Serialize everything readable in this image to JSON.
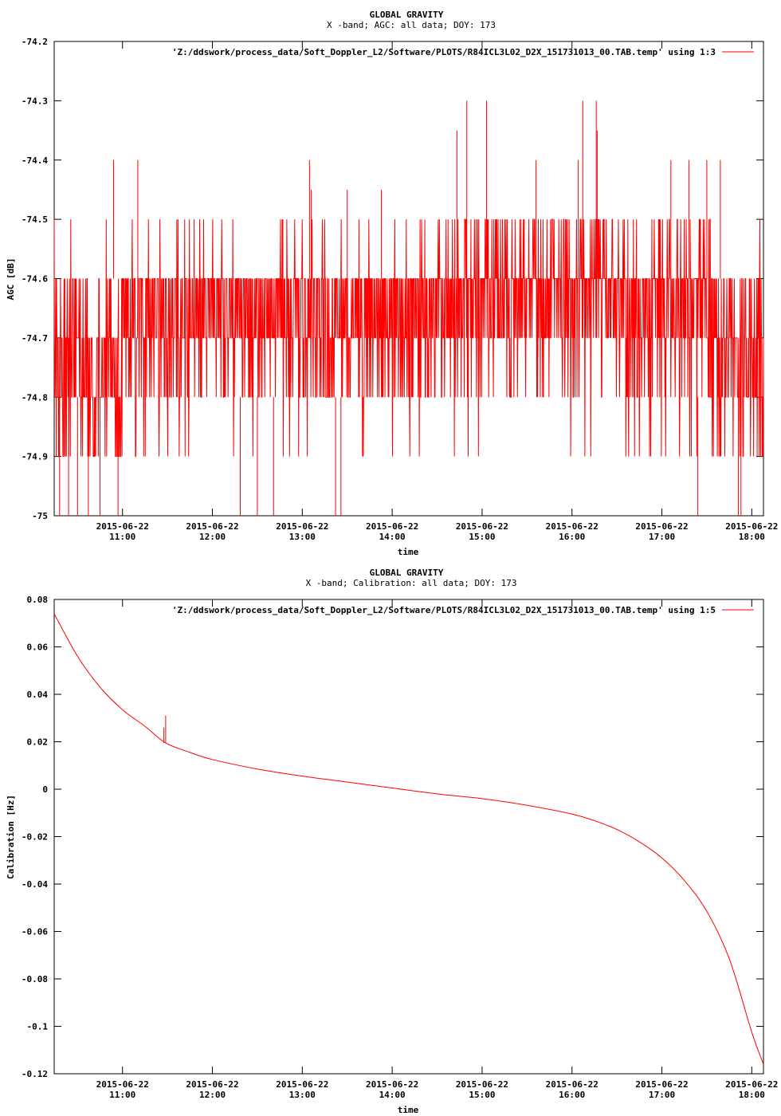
{
  "chart_data": [
    {
      "type": "line",
      "title": "GLOBAL GRAVITY",
      "subtitle": "X -band; AGC: all data; DOY: 173",
      "xlabel": "time",
      "ylabel": "AGC [dB]",
      "legend": "'Z:/ddswork/process_data/Soft_Doppler_L2/Software/PLOTS/R84ICL3L02_D2X_151731013_00.TAB.temp' using 1:3",
      "legend_position": "top-right",
      "color": "#ff0000",
      "xlim": [
        10.24,
        18.13
      ],
      "ylim": [
        -75,
        -74.2
      ],
      "yticks": [
        -75,
        -74.9,
        -74.8,
        -74.7,
        -74.6,
        -74.5,
        -74.4,
        -74.3,
        -74.2
      ],
      "ytick_labels": [
        "-75",
        "-74.9",
        "-74.8",
        "-74.7",
        "-74.6",
        "-74.5",
        "-74.4",
        "-74.3",
        "-74.2"
      ],
      "xticks": [
        11,
        12,
        13,
        14,
        15,
        16,
        17,
        18
      ],
      "xtick_dates": [
        "2015-06-22",
        "2015-06-22",
        "2015-06-22",
        "2015-06-22",
        "2015-06-22",
        "2015-06-22",
        "2015-06-22",
        "2015-06-22"
      ],
      "xtick_times": [
        "11:00",
        "12:00",
        "13:00",
        "14:00",
        "15:00",
        "16:00",
        "17:00",
        "18:00"
      ],
      "noise_levels": [
        -74.5,
        -74.6,
        -74.7,
        -74.8,
        -74.9
      ],
      "spikes": [
        {
          "x": 10.9,
          "y": -74.4
        },
        {
          "x": 11.17,
          "y": -74.4
        },
        {
          "x": 13.08,
          "y": -74.4
        },
        {
          "x": 13.1,
          "y": -74.45
        },
        {
          "x": 13.5,
          "y": -74.45
        },
        {
          "x": 13.88,
          "y": -74.45
        },
        {
          "x": 14.72,
          "y": -74.35
        },
        {
          "x": 14.83,
          "y": -74.3
        },
        {
          "x": 15.05,
          "y": -74.3
        },
        {
          "x": 15.6,
          "y": -74.4
        },
        {
          "x": 16.07,
          "y": -74.4
        },
        {
          "x": 16.12,
          "y": -74.3
        },
        {
          "x": 16.27,
          "y": -74.3
        },
        {
          "x": 16.28,
          "y": -74.35
        },
        {
          "x": 17.1,
          "y": -74.4
        },
        {
          "x": 17.3,
          "y": -74.4
        },
        {
          "x": 17.5,
          "y": -74.4
        },
        {
          "x": 17.65,
          "y": -74.4
        },
        {
          "x": 10.3,
          "y": -75.0
        },
        {
          "x": 10.4,
          "y": -75.0
        },
        {
          "x": 10.5,
          "y": -75.0
        },
        {
          "x": 10.62,
          "y": -75.0
        },
        {
          "x": 10.75,
          "y": -75.0
        },
        {
          "x": 10.95,
          "y": -75.0
        },
        {
          "x": 12.31,
          "y": -75.0
        },
        {
          "x": 12.5,
          "y": -75.0
        },
        {
          "x": 12.68,
          "y": -75.0
        },
        {
          "x": 13.37,
          "y": -75.0
        },
        {
          "x": 13.43,
          "y": -75.0
        },
        {
          "x": 17.4,
          "y": -75.0
        },
        {
          "x": 17.85,
          "y": -75.0
        },
        {
          "x": 17.88,
          "y": -75.0
        }
      ]
    },
    {
      "type": "line",
      "title": "GLOBAL GRAVITY",
      "subtitle": "X -band; Calibration: all data; DOY: 173",
      "xlabel": "time",
      "ylabel": "Calibration [Hz]",
      "legend": "'Z:/ddswork/process_data/Soft_Doppler_L2/Software/PLOTS/R84ICL3L02_D2X_151731013_00.TAB.temp' using 1:5",
      "legend_position": "top-right",
      "color": "#ff0000",
      "xlim": [
        10.24,
        18.13
      ],
      "ylim": [
        -0.12,
        0.08
      ],
      "yticks": [
        -0.12,
        -0.1,
        -0.08,
        -0.06,
        -0.04,
        -0.02,
        0,
        0.02,
        0.04,
        0.06,
        0.08
      ],
      "ytick_labels": [
        "-0.12",
        "-0.1",
        "-0.08",
        "-0.06",
        "-0.04",
        "-0.02",
        "0",
        "0.02",
        "0.04",
        "0.06",
        "0.08"
      ],
      "xticks": [
        11,
        12,
        13,
        14,
        15,
        16,
        17,
        18
      ],
      "xtick_dates": [
        "2015-06-22",
        "2015-06-22",
        "2015-06-22",
        "2015-06-22",
        "2015-06-22",
        "2015-06-22",
        "2015-06-22",
        "2015-06-22"
      ],
      "xtick_times": [
        "11:00",
        "12:00",
        "13:00",
        "14:00",
        "15:00",
        "16:00",
        "17:00",
        "18:00"
      ],
      "x": [
        10.24,
        10.5,
        10.75,
        11.0,
        11.25,
        11.48,
        11.75,
        12.0,
        12.5,
        13.0,
        13.5,
        14.0,
        14.5,
        15.0,
        15.5,
        16.0,
        16.25,
        16.5,
        16.75,
        17.0,
        17.25,
        17.5,
        17.75,
        18.0,
        18.13
      ],
      "y": [
        0.074,
        0.056,
        0.043,
        0.0335,
        0.0265,
        0.0195,
        0.0155,
        0.0125,
        0.0085,
        0.0055,
        0.003,
        0.0005,
        -0.002,
        -0.004,
        -0.0068,
        -0.0105,
        -0.0133,
        -0.017,
        -0.0222,
        -0.029,
        -0.0385,
        -0.0515,
        -0.0715,
        -0.1025,
        -0.116
      ],
      "spike": {
        "x": 11.48,
        "y": 0.031
      }
    }
  ]
}
